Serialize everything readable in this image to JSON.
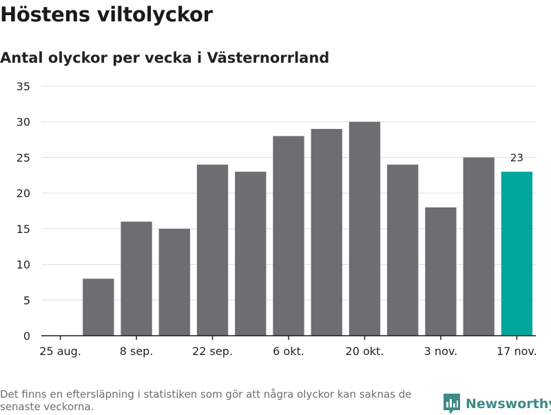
{
  "header": {
    "title": "Höstens viltolyckor",
    "subtitle": "Antal olyckor per vecka i Västernorrland"
  },
  "footer": {
    "note": "Det finns en eftersläpning i statistiken som gör att några olyckor kan saknas de senaste veckorna.",
    "brand": "Newsworthy"
  },
  "colors": {
    "bar": "#6e6d72",
    "highlight": "#00a69c",
    "grid": "#dcdcdc",
    "axis": "#1a1a1a",
    "brand": "#3d8a87"
  },
  "chart_data": {
    "type": "bar",
    "title": "Höstens viltolyckor",
    "subtitle": "Antal olyckor per vecka i Västernorrland",
    "xlabel": "",
    "ylabel": "",
    "ylim": [
      0,
      35
    ],
    "yticks": [
      0,
      5,
      10,
      15,
      20,
      25,
      30,
      35
    ],
    "xtick_labels": [
      "25 aug.",
      "8 sep.",
      "22 sep.",
      "6 okt.",
      "20 okt.",
      "3 nov.",
      "17 nov."
    ],
    "categories": [
      "1 sep.",
      "8 sep.",
      "15 sep.",
      "22 sep.",
      "29 sep.",
      "6 okt.",
      "13 okt.",
      "20 okt.",
      "27 okt.",
      "3 nov.",
      "10 nov.",
      "17 nov."
    ],
    "values": [
      8,
      16,
      15,
      24,
      23,
      28,
      29,
      30,
      24,
      18,
      25,
      23
    ],
    "highlight_index": 11,
    "highlight_label": "23",
    "grid": true
  }
}
